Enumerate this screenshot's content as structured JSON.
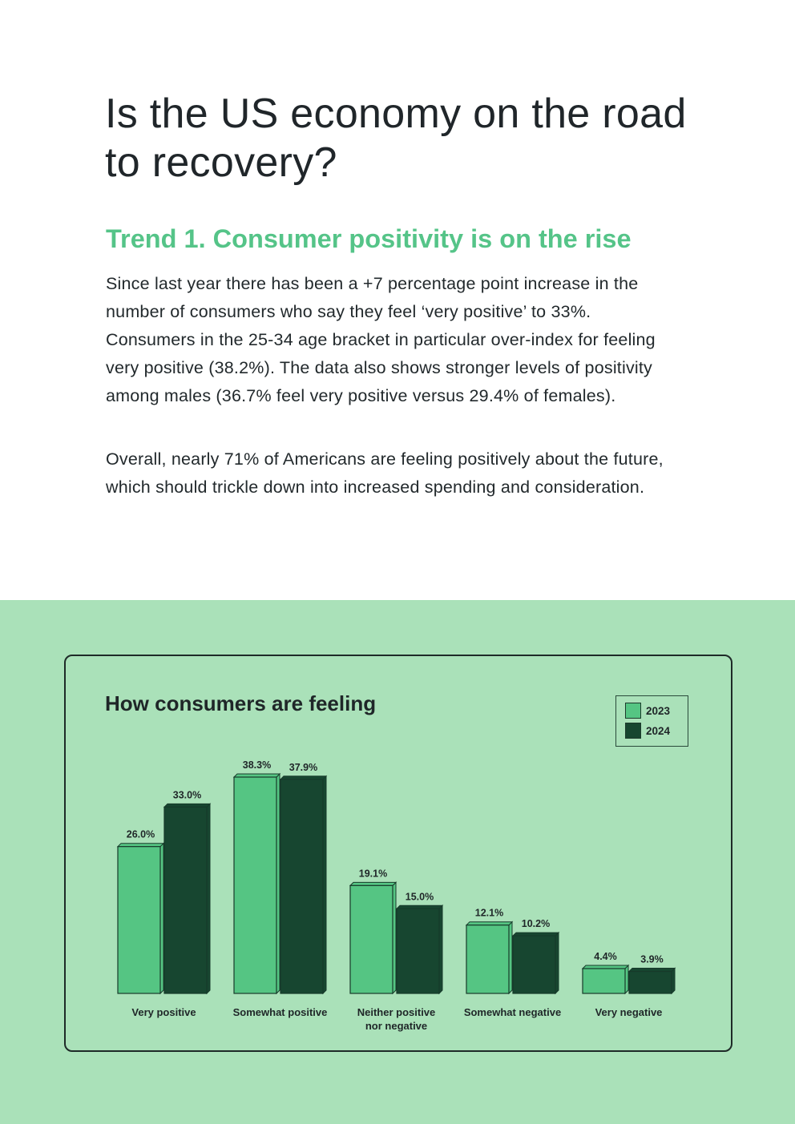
{
  "page": {
    "title": "Is the US economy on the road to recovery?",
    "trend_heading": "Trend 1. Consumer positivity is on the rise",
    "paragraphs": [
      "Since last year there has been a +7 percentage point increase in the number of consumers who say they feel ‘very positive’ to 33%. Consumers in the 25-34 age bracket in particular over-index for feeling very positive (38.2%). The data also shows stronger levels of positivity among males (36.7% feel very positive versus 29.4% of females).",
      "Overall, nearly 71% of Americans are feeling positively about the future, which should trickle down into increased spending and consideration."
    ]
  },
  "colors": {
    "background_band": "#aae1b9",
    "heading_accent": "#55c488",
    "series_2023": "#55c583",
    "series_2024": "#174630"
  },
  "chart_data": {
    "type": "bar",
    "title": "How consumers are feeling",
    "xlabel": "",
    "ylabel": "",
    "grid": false,
    "legend_position": "top-right",
    "categories": [
      [
        "Very positive"
      ],
      [
        "Somewhat positive"
      ],
      [
        "Neither positive",
        "nor negative"
      ],
      [
        "Somewhat negative"
      ],
      [
        "Very negative"
      ]
    ],
    "series": [
      {
        "name": "2023",
        "color": "#55c583",
        "values": [
          26.0,
          38.3,
          19.1,
          12.1,
          4.4
        ],
        "labels": [
          "26.0%",
          "38.3%",
          "19.1%",
          "12.1%",
          "4.4%"
        ]
      },
      {
        "name": "2024",
        "color": "#174630",
        "values": [
          33.0,
          37.9,
          15.0,
          10.2,
          3.9
        ],
        "labels": [
          "33.0%",
          "37.9%",
          "15.0%",
          "10.2%",
          "3.9%"
        ]
      }
    ]
  }
}
